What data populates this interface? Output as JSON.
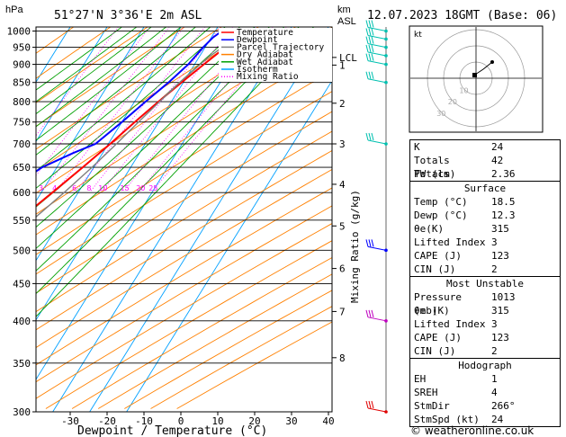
{
  "header": {
    "hpa_label": "hPa",
    "location": "51°27'N  3°36'E  2m  ASL",
    "km_label": "km",
    "asl_label": "ASL",
    "datetime": "12.07.2023 18GMT (Base: 06)"
  },
  "footer": {
    "xlabel": "Dewpoint / Temperature (°C)",
    "credit": "© weatheronline.co.uk",
    "mixing_label": "Mixing Ratio (g/kg)"
  },
  "legend": [
    {
      "label": "Temperature",
      "color": "#ff0000",
      "style": "solid"
    },
    {
      "label": "Dewpoint",
      "color": "#0000ff",
      "style": "solid"
    },
    {
      "label": "Parcel Trajectory",
      "color": "#808080",
      "style": "solid"
    },
    {
      "label": "Dry Adiabat",
      "color": "#ff8000",
      "style": "solid"
    },
    {
      "label": "Wet Adiabat",
      "color": "#00a000",
      "style": "solid"
    },
    {
      "label": "Isotherm",
      "color": "#00a0ff",
      "style": "solid"
    },
    {
      "label": "Mixing Ratio",
      "color": "#ff00ff",
      "style": "dotted"
    }
  ],
  "chart_data": {
    "type": "line",
    "title": "51°27'N  3°36'E  2m  ASL",
    "xlabel": "Dewpoint / Temperature (°C)",
    "ylabel": "hPa",
    "xlim": [
      -40,
      40
    ],
    "x_ticks": [
      -30,
      -20,
      -10,
      0,
      10,
      20,
      30,
      40
    ],
    "pressure_levels": [
      300,
      350,
      400,
      450,
      500,
      550,
      600,
      650,
      700,
      750,
      800,
      850,
      900,
      950,
      1000
    ],
    "km_ticks": [
      {
        "label": "8",
        "p": 356
      },
      {
        "label": "7",
        "p": 412
      },
      {
        "label": "6",
        "p": 472
      },
      {
        "label": "5",
        "p": 540
      },
      {
        "label": "4",
        "p": 616
      },
      {
        "label": "3",
        "p": 700
      },
      {
        "label": "2",
        "p": 796
      },
      {
        "label": "1",
        "p": 898
      },
      {
        "label": "LCL",
        "p": 920
      }
    ],
    "mixing_ratio_labels": [
      "1",
      "2",
      "3",
      "4",
      "6",
      "8",
      "10",
      "15",
      "20",
      "25"
    ],
    "series": [
      {
        "name": "Temperature",
        "color": "#ff0000",
        "points": [
          [
            1007,
            18.5
          ],
          [
            950,
            15.5
          ],
          [
            900,
            12.5
          ],
          [
            850,
            9.5
          ],
          [
            800,
            6.5
          ],
          [
            750,
            3.5
          ],
          [
            700,
            0.5
          ],
          [
            650,
            -3
          ],
          [
            600,
            -7
          ],
          [
            550,
            -11.5
          ],
          [
            500,
            -16
          ],
          [
            475,
            -18
          ]
        ]
      },
      {
        "name": "Dewpoint",
        "color": "#0000ff",
        "points": [
          [
            1007,
            12.3
          ],
          [
            980,
            10.5
          ],
          [
            950,
            9.5
          ],
          [
            900,
            8.3
          ],
          [
            850,
            6
          ],
          [
            800,
            3
          ],
          [
            750,
            0
          ],
          [
            700,
            -3.5
          ],
          [
            680,
            -8
          ],
          [
            650,
            -14
          ],
          [
            600,
            -20
          ],
          [
            570,
            -22
          ],
          [
            550,
            -19
          ],
          [
            500,
            -19
          ],
          [
            450,
            -22
          ],
          [
            400,
            -28
          ],
          [
            350,
            -36
          ],
          [
            300,
            -44
          ]
        ]
      },
      {
        "name": "Parcel Trajectory",
        "color": "#808080",
        "points": [
          [
            1007,
            18.5
          ],
          [
            920,
            12.5
          ],
          [
            850,
            9
          ],
          [
            800,
            6.8
          ],
          [
            750,
            4.5
          ],
          [
            700,
            2.2
          ],
          [
            650,
            -0.5
          ],
          [
            600,
            -3.8
          ],
          [
            550,
            -7.8
          ],
          [
            500,
            -12.5
          ],
          [
            450,
            -18
          ],
          [
            400,
            -25
          ],
          [
            350,
            -33.5
          ],
          [
            300,
            -43
          ]
        ]
      }
    ],
    "wind_barbs": [
      {
        "p": 1000,
        "color": "#00c0b0"
      },
      {
        "p": 975,
        "color": "#00c0b0"
      },
      {
        "p": 950,
        "color": "#00c0b0"
      },
      {
        "p": 925,
        "color": "#00c0b0"
      },
      {
        "p": 900,
        "color": "#00c0b0"
      },
      {
        "p": 850,
        "color": "#00c0b0"
      },
      {
        "p": 700,
        "color": "#00c0b0"
      },
      {
        "p": 500,
        "color": "#0000ff"
      },
      {
        "p": 400,
        "color": "#c000c0"
      },
      {
        "p": 300,
        "color": "#e00000"
      }
    ]
  },
  "hodograph": {
    "label": "kt",
    "rings": [
      "10",
      "20",
      "30"
    ]
  },
  "indices": {
    "rows": [
      {
        "label": "K",
        "value": "24"
      },
      {
        "label": "Totals Totals",
        "value": "42"
      },
      {
        "label": "PW (cm)",
        "value": "2.36"
      }
    ]
  },
  "surface": {
    "title": "Surface",
    "rows": [
      {
        "label": "Temp (°C)",
        "value": "18.5"
      },
      {
        "label": "Dewp (°C)",
        "value": "12.3"
      },
      {
        "label": "θe(K)",
        "value": "315"
      },
      {
        "label": "Lifted Index",
        "value": "3"
      },
      {
        "label": "CAPE (J)",
        "value": "123"
      },
      {
        "label": "CIN (J)",
        "value": "2"
      }
    ]
  },
  "unstable": {
    "title": "Most Unstable",
    "rows": [
      {
        "label": "Pressure (mb)",
        "value": "1013"
      },
      {
        "label": "θe (K)",
        "value": "315"
      },
      {
        "label": "Lifted Index",
        "value": "3"
      },
      {
        "label": "CAPE (J)",
        "value": "123"
      },
      {
        "label": "CIN (J)",
        "value": "2"
      }
    ]
  },
  "hodo_table": {
    "title": "Hodograph",
    "rows": [
      {
        "label": "EH",
        "value": "1"
      },
      {
        "label": "SREH",
        "value": "4"
      },
      {
        "label": "StmDir",
        "value": "266°"
      },
      {
        "label": "StmSpd (kt)",
        "value": "24"
      }
    ]
  }
}
